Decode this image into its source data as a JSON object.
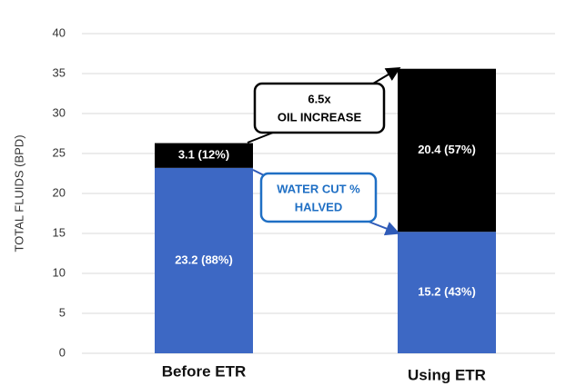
{
  "chart_data": {
    "type": "stacked_bar",
    "y_label": "TOTAL FLUIDS (BPD)",
    "categories": [
      "Before ETR",
      "Using ETR"
    ],
    "series": [
      {
        "color": "#3d68c4",
        "values": [
          23.2,
          15.2
        ],
        "value_labels": [
          "23.2 (88%)",
          "15.2 (43%)"
        ]
      },
      {
        "color": "#000000",
        "values": [
          3.1,
          20.4
        ],
        "value_labels": [
          "3.1 (12%)",
          "20.4 (57%)"
        ]
      }
    ],
    "ylim": [
      0,
      40
    ],
    "yticks": [
      0,
      5,
      10,
      15,
      20,
      25,
      30,
      35,
      40
    ],
    "grid": true,
    "annotations": [
      {
        "lines": [
          "6.5x",
          "OIL INCREASE"
        ]
      },
      {
        "lines": [
          "WATER CUT %",
          "HALVED"
        ]
      }
    ]
  }
}
